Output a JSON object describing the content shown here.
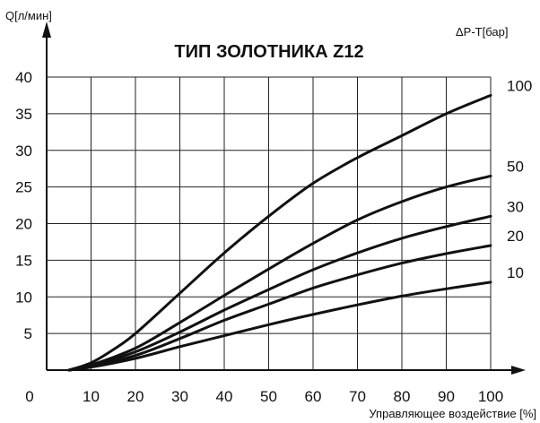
{
  "chart_data": {
    "type": "line",
    "title": "ТИП ЗОЛОТНИКА Z12",
    "ylabel": "Q[л/мин]",
    "xlabel": "Управляющее воздействие [%]",
    "legend_title": "ΔP-T[бар]",
    "xlim": [
      0,
      100
    ],
    "ylim": [
      0,
      40
    ],
    "x_ticks": [
      10,
      20,
      30,
      40,
      50,
      60,
      70,
      80,
      90,
      100
    ],
    "y_ticks": [
      5,
      10,
      15,
      20,
      25,
      30,
      35,
      40
    ],
    "origin_label": "0",
    "grid": true,
    "legend_position": "right",
    "series": [
      {
        "name": "100",
        "x": [
          5,
          10,
          15,
          20,
          30,
          40,
          50,
          60,
          70,
          80,
          90,
          100
        ],
        "y": [
          0,
          1,
          2.8,
          5,
          10.5,
          16,
          21,
          25.5,
          29,
          32,
          35,
          37.5
        ]
      },
      {
        "name": "50",
        "x": [
          5,
          10,
          20,
          30,
          40,
          50,
          60,
          70,
          80,
          90,
          100
        ],
        "y": [
          0,
          0.7,
          3,
          6.5,
          10.2,
          13.8,
          17.3,
          20.5,
          23,
          25,
          26.5
        ]
      },
      {
        "name": "30",
        "x": [
          5,
          10,
          20,
          30,
          40,
          50,
          60,
          70,
          80,
          90,
          100
        ],
        "y": [
          0,
          0.6,
          2.5,
          5.2,
          8.2,
          11,
          13.7,
          16,
          18,
          19.6,
          21
        ]
      },
      {
        "name": "20",
        "x": [
          5,
          10,
          20,
          30,
          40,
          50,
          60,
          70,
          80,
          90,
          100
        ],
        "y": [
          0,
          0.5,
          2,
          4.3,
          6.8,
          9,
          11.2,
          13,
          14.6,
          15.9,
          17
        ]
      },
      {
        "name": "10",
        "x": [
          5,
          10,
          20,
          30,
          40,
          50,
          60,
          70,
          80,
          90,
          100
        ],
        "y": [
          0,
          0.4,
          1.6,
          3.2,
          4.7,
          6.2,
          7.6,
          8.9,
          10.1,
          11.1,
          12
        ]
      }
    ]
  }
}
